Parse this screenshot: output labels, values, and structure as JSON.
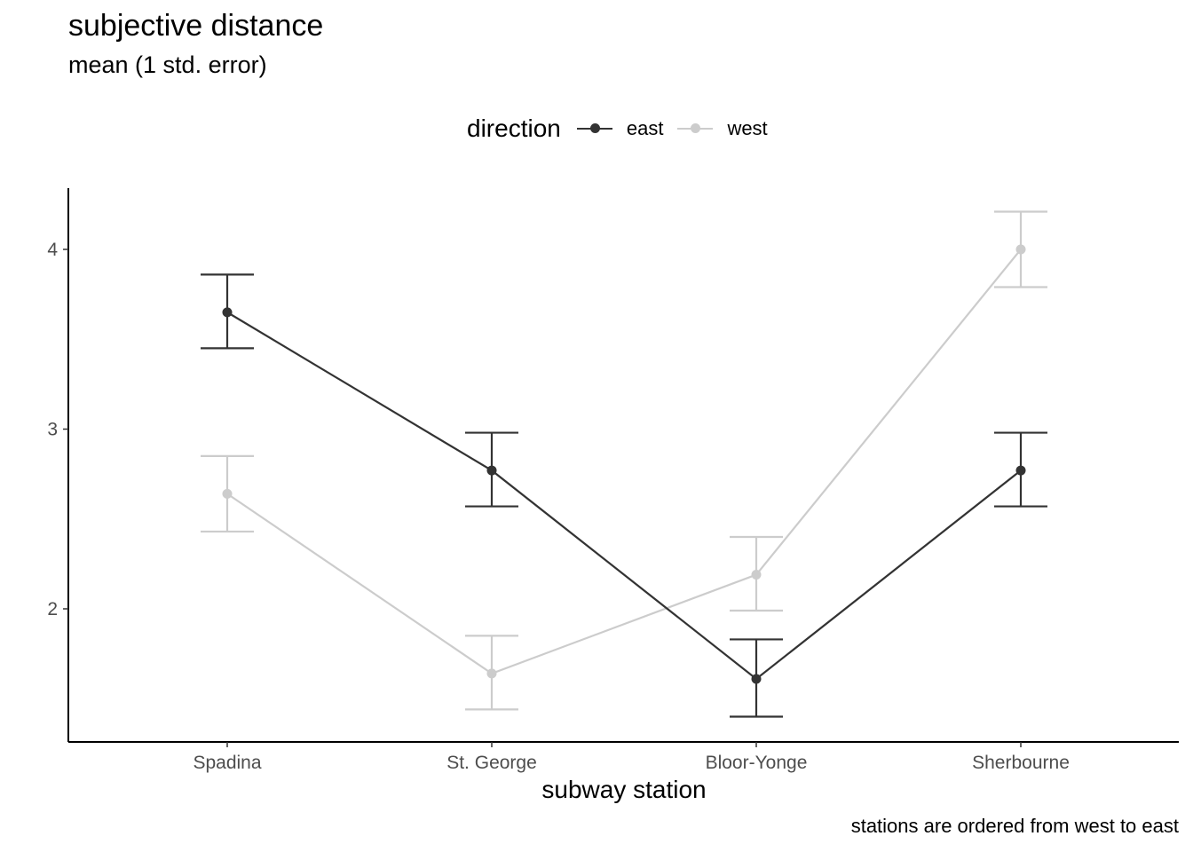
{
  "chart_data": {
    "type": "line",
    "title": "subjective distance",
    "subtitle": "mean (1 std. error)",
    "xlabel": "subway station",
    "ylabel": "",
    "caption": "stations are ordered from west to east",
    "categories": [
      "Spadina",
      "St. George",
      "Bloor-Yonge",
      "Sherbourne"
    ],
    "yticks": [
      2,
      3,
      4
    ],
    "ylim": [
      1.25,
      4.34
    ],
    "grid": false,
    "legend": {
      "title": "direction",
      "position": "top",
      "entries": [
        "east",
        "west"
      ]
    },
    "series": [
      {
        "name": "east",
        "color": "#333333",
        "values": [
          3.65,
          2.77,
          1.61,
          2.77
        ],
        "lower": [
          3.45,
          2.57,
          1.4,
          2.57
        ],
        "upper": [
          3.86,
          2.98,
          1.83,
          2.98
        ]
      },
      {
        "name": "west",
        "color": "#cccccc",
        "values": [
          2.64,
          1.64,
          2.19,
          4.0
        ],
        "lower": [
          2.43,
          1.44,
          1.99,
          3.79
        ],
        "upper": [
          2.85,
          1.85,
          2.4,
          4.21
        ]
      }
    ]
  }
}
